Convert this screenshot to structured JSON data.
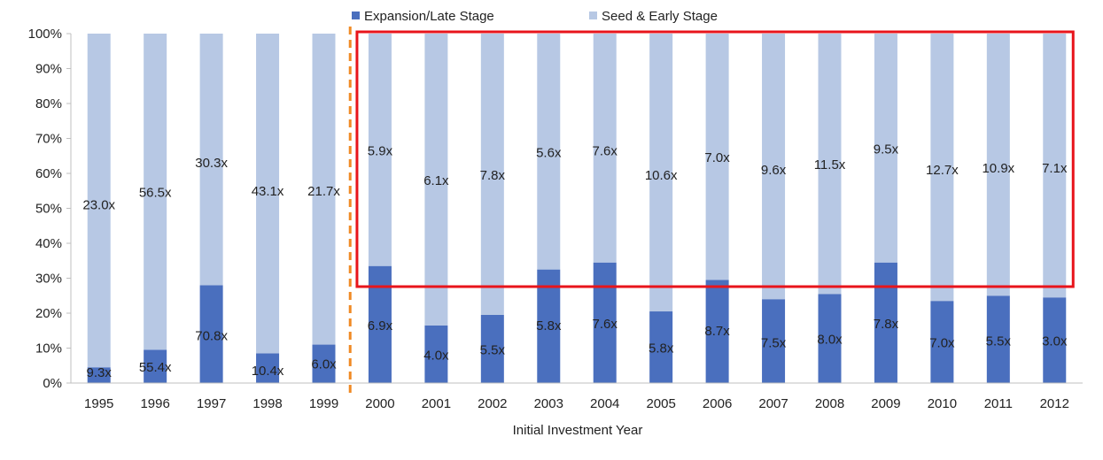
{
  "chart_data": {
    "type": "bar",
    "stacked": true,
    "normalized": true,
    "categories": [
      "1995",
      "1996",
      "1997",
      "1998",
      "1999",
      "2000",
      "2001",
      "2002",
      "2003",
      "2004",
      "2005",
      "2006",
      "2007",
      "2008",
      "2009",
      "2010",
      "2011",
      "2012"
    ],
    "series": [
      {
        "name": "Expansion/Late Stage",
        "color": "#4a6fbe",
        "values": [
          4.5,
          9.5,
          28,
          8.5,
          11,
          33.5,
          16.5,
          19.5,
          32.5,
          34.5,
          20.5,
          29.5,
          24,
          25.5,
          34.5,
          23.5,
          25,
          24.5
        ],
        "labels": [
          "9.3x",
          "55.4x",
          "70.8x",
          "10.4x",
          "6.0x",
          "6.9x",
          "4.0x",
          "5.5x",
          "5.8x",
          "7.6x",
          "5.8x",
          "8.7x",
          "7.5x",
          "8.0x",
          "7.8x",
          "7.0x",
          "5.5x",
          "3.0x"
        ]
      },
      {
        "name": "Seed & Early Stage",
        "color": "#b7c8e4",
        "values": [
          95.5,
          90.5,
          72,
          91.5,
          89,
          66.5,
          83.5,
          80.5,
          67.5,
          65.5,
          79.5,
          70.5,
          76,
          74.5,
          65.5,
          76.5,
          75,
          75.5
        ],
        "labels": [
          "23.0x",
          "56.5x",
          "30.3x",
          "43.1x",
          "21.7x",
          "5.9x",
          "6.1x",
          "7.8x",
          "5.6x",
          "7.6x",
          "10.6x",
          "7.0x",
          "9.6x",
          "11.5x",
          "9.5x",
          "12.7x",
          "10.9x",
          "7.1x"
        ]
      }
    ],
    "yticks": [
      "0%",
      "10%",
      "20%",
      "30%",
      "40%",
      "50%",
      "60%",
      "70%",
      "80%",
      "90%",
      "100%"
    ],
    "ylim": [
      0,
      100
    ],
    "xlabel": "Initial Investment Year",
    "ylabel": "",
    "title": "",
    "legend_position": "top",
    "grid": false,
    "annotations": {
      "divider_between": [
        "1999",
        "2000"
      ],
      "divider_color": "#f08a24",
      "highlight_box_from": "2000",
      "highlight_box_to": "2012",
      "highlight_box_color": "#e8141b"
    }
  }
}
